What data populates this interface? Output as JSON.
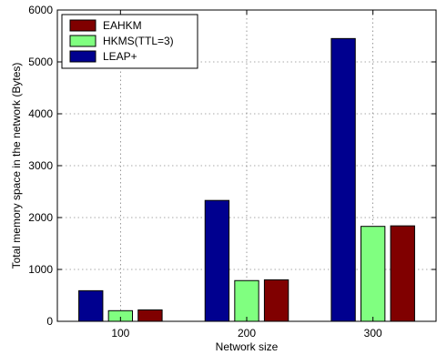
{
  "chart_data": {
    "type": "bar",
    "categories": [
      "100",
      "200",
      "300"
    ],
    "series": [
      {
        "name": "LEAP+",
        "color": "#00008f",
        "values": [
          590,
          2330,
          5450
        ]
      },
      {
        "name": "HKMS(TTL=3)",
        "color": "#80ff80",
        "values": [
          205,
          785,
          1830
        ]
      },
      {
        "name": "EAHKM",
        "color": "#800000",
        "values": [
          220,
          800,
          1840
        ]
      }
    ],
    "legend": [
      "EAHKM",
      "HKMS(TTL=3)",
      "LEAP+"
    ],
    "legend_placement": "top-left",
    "xlabel": "Network size",
    "ylabel": "Total memory space in the network (Bytes)",
    "ylim": [
      0,
      6000
    ],
    "yticks": [
      "0",
      "1000",
      "2000",
      "3000",
      "4000",
      "5000",
      "6000"
    ],
    "grid": true
  }
}
